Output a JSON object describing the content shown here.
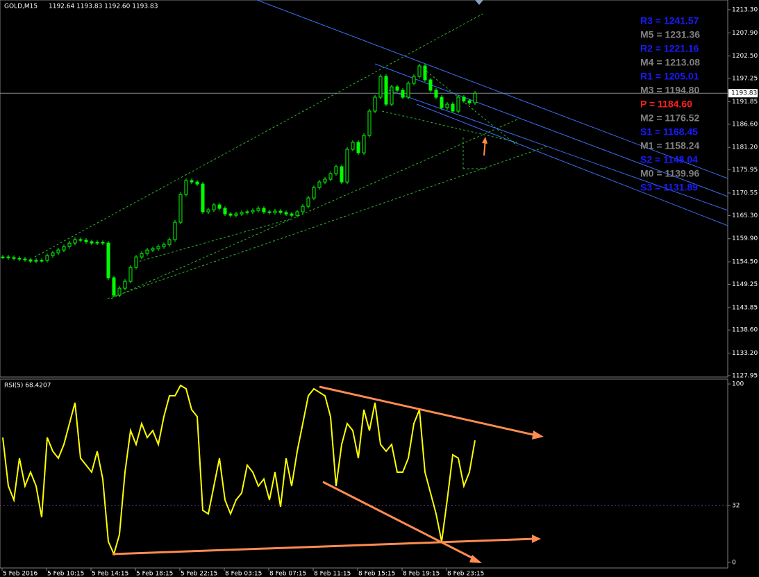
{
  "header": {
    "symbol": "GOLD,M15",
    "ohlc": "1192.64 1193.83 1192.60 1193.83"
  },
  "price_axis": [
    "1213.30",
    "1207.90",
    "1202.50",
    "1197.25",
    "1191.85",
    "1186.60",
    "1181.20",
    "1175.95",
    "1170.55",
    "1165.30",
    "1159.90",
    "1154.50",
    "1149.25",
    "1143.85",
    "1138.60",
    "1133.20",
    "1127.95"
  ],
  "current_price": "1193.83",
  "pivots": [
    {
      "text": "R3 = 1241.57",
      "color": "#1a1aff"
    },
    {
      "text": "M5 = 1231.36",
      "color": "#808080"
    },
    {
      "text": "R2 = 1221.16",
      "color": "#1a1aff"
    },
    {
      "text": "M4 = 1213.08",
      "color": "#808080"
    },
    {
      "text": "R1 = 1205.01",
      "color": "#1a1aff"
    },
    {
      "text": "M3 = 1194.80",
      "color": "#808080"
    },
    {
      "text": "P   = 1184.60",
      "color": "#ff2020"
    },
    {
      "text": "M2 = 1176.52",
      "color": "#808080"
    },
    {
      "text": "S1 = 1168.45",
      "color": "#1a1aff"
    },
    {
      "text": "M1 = 1158.24",
      "color": "#808080"
    },
    {
      "text": "S2 = 1148.04",
      "color": "#1a1aff"
    },
    {
      "text": "M0 = 1139.96",
      "color": "#808080"
    },
    {
      "text": "S3 = 1131.89",
      "color": "#1a1aff"
    }
  ],
  "rsi": {
    "label": "RSI(5) 68.4207",
    "axis": [
      "100",
      "32",
      "0"
    ]
  },
  "time_axis": [
    "5 Feb 2016",
    "5 Feb 10:15",
    "5 Feb 14:15",
    "5 Feb 18:15",
    "5 Feb 22:15",
    "8 Feb 03:15",
    "8 Feb 07:15",
    "8 Feb 11:15",
    "8 Feb 15:15",
    "8 Feb 19:15",
    "8 Feb 23:15"
  ],
  "price_closes": [
    1155.63,
    1155.47,
    1155.3,
    1155.14,
    1154.98,
    1154.66,
    1154.82,
    1154.82,
    1155.95,
    1156.6,
    1157.25,
    1158.06,
    1158.87,
    1159.68,
    1159.52,
    1159.19,
    1158.87,
    1159.03,
    1158.87,
    1150.77,
    1146.72,
    1148.34,
    1149.96,
    1153.2,
    1155.63,
    1156.44,
    1157.25,
    1157.57,
    1158.06,
    1158.54,
    1159.68,
    1163.73,
    1170.21,
    1173.45,
    1173.12,
    1172.64,
    1166.16,
    1166.64,
    1167.78,
    1166.97,
    1165.67,
    1165.35,
    1165.67,
    1166.0,
    1166.16,
    1166.48,
    1166.97,
    1166.16,
    1166.0,
    1166.32,
    1166.0,
    1165.67,
    1165.35,
    1166.16,
    1167.45,
    1169.4,
    1171.83,
    1173.12,
    1173.77,
    1175.07,
    1176.69,
    1173.12,
    1180.74,
    1182.36,
    1179.93,
    1183.98,
    1189.65,
    1192.89,
    1197.75,
    1191.27,
    1195.32,
    1194.51,
    1192.89,
    1196.13,
    1197.75,
    1200.18,
    1196.94,
    1194.51,
    1192.89,
    1190.46,
    1191.27,
    1189.65,
    1192.89,
    1192.08,
    1191.59,
    1193.83
  ],
  "rsi_values": [
    70.0,
    42.8,
    35.0,
    58.4,
    42.8,
    50.6,
    42.8,
    25.3,
    70.0,
    62.3,
    58.4,
    66.1,
    77.8,
    89.5,
    58.4,
    54.5,
    50.6,
    62.3,
    46.7,
    11.7,
    4.7,
    15.6,
    50.6,
    73.9,
    66.1,
    77.8,
    70.0,
    73.9,
    66.1,
    81.7,
    93.4,
    93.4,
    99.2,
    97.3,
    85.6,
    81.7,
    29.2,
    27.2,
    42.8,
    58.4,
    35.0,
    27.2,
    35.0,
    38.9,
    54.5,
    50.6,
    42.8,
    46.7,
    35.0,
    50.6,
    31.1,
    58.4,
    42.8,
    62.3,
    77.8,
    93.4,
    97.3,
    95.3,
    93.4,
    81.7,
    42.8,
    66.1,
    77.8,
    73.9,
    58.4,
    85.6,
    73.9,
    89.5,
    66.1,
    62.3,
    66.1,
    50.6,
    50.6,
    58.4,
    77.8,
    85.6,
    50.6,
    38.9,
    27.2,
    11.7,
    35.0,
    60.3,
    58.4,
    42.8,
    50.6,
    68.42
  ]
}
